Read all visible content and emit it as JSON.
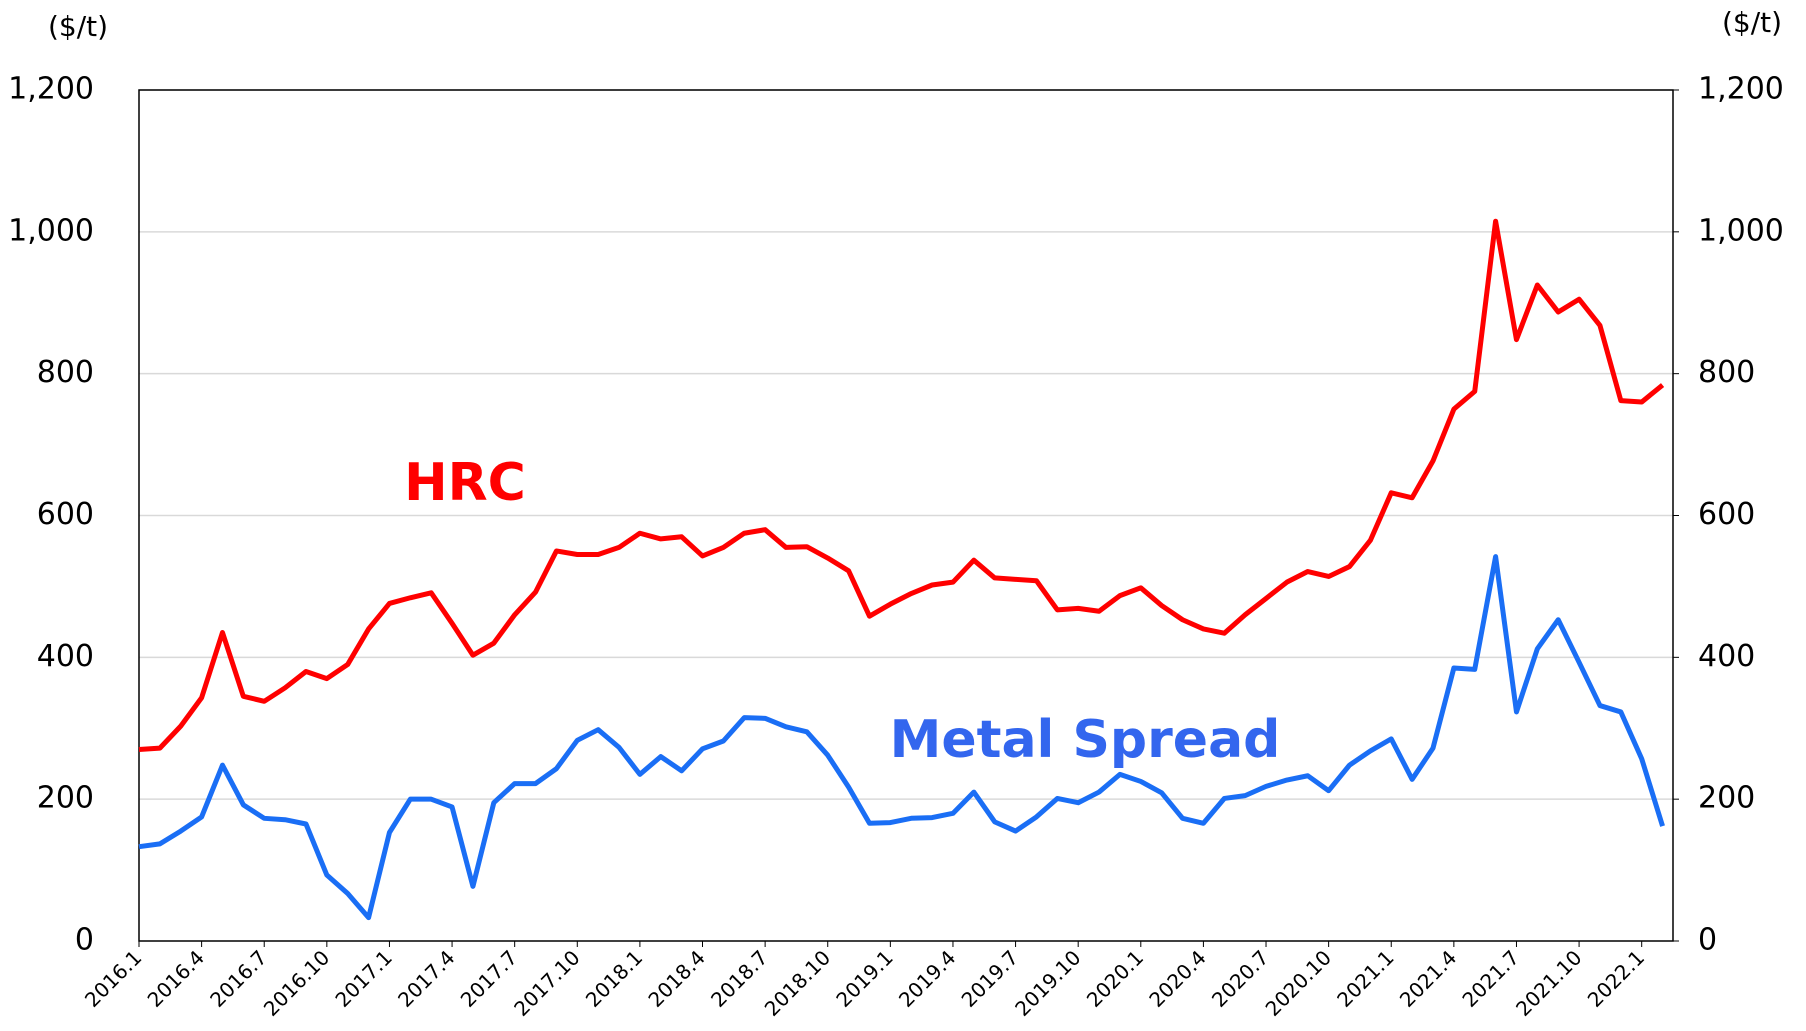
{
  "chart_data": {
    "type": "line",
    "y_label": "($/t)",
    "y2_label": "($/t)",
    "categories": [
      "2016.1",
      null,
      null,
      "2016.4",
      null,
      null,
      "2016.7",
      null,
      null,
      "2016.10",
      null,
      null,
      "2017.1",
      null,
      null,
      "2017.4",
      null,
      null,
      "2017.7",
      null,
      null,
      "2017.10",
      null,
      null,
      "2018.1",
      null,
      null,
      "2018.4",
      null,
      null,
      "2018.7",
      null,
      null,
      "2018.10",
      null,
      null,
      "2019.1",
      null,
      null,
      "2019.4",
      null,
      null,
      "2019.7",
      null,
      null,
      "2019.10",
      null,
      null,
      "2020.1",
      null,
      null,
      "2020.4",
      null,
      null,
      "2020.7",
      null,
      null,
      "2020.10",
      null,
      null,
      "2021.1",
      null,
      null,
      "2021.4",
      null,
      null,
      "2021.7",
      null,
      null,
      "2021.10",
      null,
      null,
      "2022.1",
      null
    ],
    "series": [
      {
        "name": "HRC",
        "color": "#ff0000",
        "values": [
          270,
          272,
          303,
          343,
          435,
          345,
          338,
          357,
          380,
          370,
          390,
          440,
          476,
          484,
          491,
          448,
          403,
          420,
          460,
          492,
          550,
          545,
          545,
          555,
          575,
          567,
          570,
          543,
          555,
          575,
          580,
          555,
          556,
          540,
          522,
          458,
          475,
          490,
          502,
          506,
          537,
          512,
          510,
          508,
          467,
          469,
          465,
          487,
          498,
          473,
          453,
          440,
          434,
          460,
          483,
          506,
          521,
          514,
          528,
          565,
          632,
          625,
          677,
          750,
          775,
          1015,
          848,
          925,
          887,
          905,
          868,
          762,
          760,
          784
        ]
      },
      {
        "name": "Metal Spread",
        "color": "#1a6ef5",
        "label_color": "#3366ee",
        "values": [
          133,
          137,
          155,
          175,
          248,
          192,
          173,
          171,
          165,
          93,
          67,
          33,
          153,
          200,
          200,
          189,
          77,
          195,
          222,
          222,
          243,
          283,
          298,
          273,
          235,
          260,
          240,
          271,
          282,
          315,
          314,
          302,
          295,
          262,
          217,
          166,
          167,
          173,
          174,
          180,
          210,
          168,
          155,
          175,
          201,
          195,
          210,
          235,
          225,
          209,
          173,
          166,
          201,
          205,
          218,
          227,
          233,
          212,
          248,
          268,
          285,
          228,
          272,
          385,
          383,
          542,
          323,
          412,
          453,
          393,
          332,
          323,
          257,
          162
        ]
      }
    ],
    "ylim": [
      0,
      1200
    ],
    "yticks": [
      0,
      200,
      400,
      600,
      800,
      {
        "value": 1000,
        "label": "1,000"
      },
      {
        "value": 1200,
        "label": "1,200"
      }
    ],
    "y2lim": [
      0,
      1200
    ],
    "y2ticks": [
      0,
      200,
      400,
      600,
      800,
      {
        "value": 1000,
        "label": "1,000"
      },
      {
        "value": 1200,
        "label": "1,200"
      }
    ],
    "grid": true
  }
}
